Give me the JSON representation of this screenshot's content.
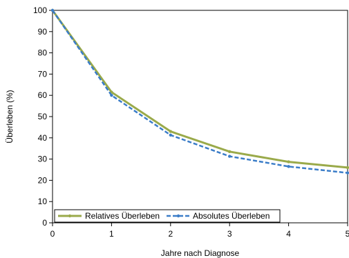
{
  "chart_data": {
    "type": "line",
    "xlabel": "Jahre nach Diagnose",
    "ylabel": "Überleben (%)",
    "x": [
      0,
      1,
      2,
      3,
      4,
      5
    ],
    "xlim": [
      0,
      5
    ],
    "ylim": [
      0,
      100
    ],
    "yticks": [
      0,
      10,
      20,
      30,
      40,
      50,
      60,
      70,
      80,
      90,
      100
    ],
    "xticks": [
      0,
      1,
      2,
      3,
      4,
      5
    ],
    "grid": false,
    "legend_position": "bottom-left",
    "series": [
      {
        "name": "Relatives Überleben",
        "values": [
          100,
          61.5,
          43,
          33.5,
          28.7,
          26
        ],
        "color": "#9aaa4a",
        "style": "solid"
      },
      {
        "name": "Absolutes Überleben",
        "values": [
          100,
          60,
          41.3,
          31.3,
          26.5,
          23.5
        ],
        "color": "#3b7dc8",
        "style": "dashed"
      }
    ]
  }
}
